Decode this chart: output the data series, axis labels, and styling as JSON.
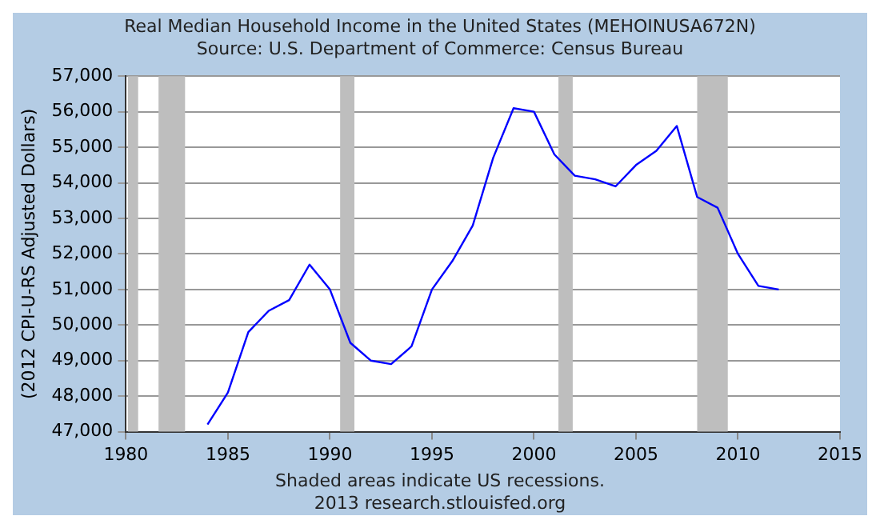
{
  "chart_data": {
    "type": "line",
    "title": "Real Median Household Income in the United States (MEHOINUSA672N)",
    "subtitle": "Source: U.S. Department of Commerce: Census Bureau",
    "ylabel": "(2012 CPI-U-RS Adjusted Dollars)",
    "annotations": [
      "Shaded areas indicate US recessions.",
      "2013 research.stlouisfed.org"
    ],
    "x": [
      1984,
      1985,
      1986,
      1987,
      1988,
      1989,
      1990,
      1991,
      1992,
      1993,
      1994,
      1995,
      1996,
      1997,
      1998,
      1999,
      2000,
      2001,
      2002,
      2003,
      2004,
      2005,
      2006,
      2007,
      2008,
      2009,
      2010,
      2011,
      2012
    ],
    "series": [
      {
        "color": "#0000ff",
        "values": [
          47200,
          48100,
          49800,
          50400,
          50700,
          51700,
          51000,
          49500,
          49000,
          48900,
          49400,
          51000,
          51800,
          52800,
          54700,
          56100,
          56000,
          54800,
          54200,
          54100,
          53900,
          54500,
          54900,
          55600,
          53600,
          53300,
          52000,
          51100,
          51000
        ]
      }
    ],
    "xlim": [
      1980,
      2015
    ],
    "xticks": [
      1980,
      1985,
      1990,
      1995,
      2000,
      2005,
      2010,
      2015
    ],
    "ylim": [
      47000,
      57000
    ],
    "yticks": [
      {
        "value": 47000,
        "label": "47,000"
      },
      {
        "value": 48000,
        "label": "48,000"
      },
      {
        "value": 49000,
        "label": "49,000"
      },
      {
        "value": 50000,
        "label": "50,000"
      },
      {
        "value": 51000,
        "label": "51,000"
      },
      {
        "value": 52000,
        "label": "52,000"
      },
      {
        "value": 53000,
        "label": "53,000"
      },
      {
        "value": 54000,
        "label": "54,000"
      },
      {
        "value": 55000,
        "label": "55,000"
      },
      {
        "value": 56000,
        "label": "56,000"
      },
      {
        "value": 57000,
        "label": "57,000"
      }
    ],
    "bands": [
      {
        "axis": "x",
        "from": 1980.1,
        "to": 1980.6,
        "color": "#bebebe"
      },
      {
        "axis": "x",
        "from": 1981.6,
        "to": 1982.9,
        "color": "#bebebe"
      },
      {
        "axis": "x",
        "from": 1990.5,
        "to": 1991.2,
        "color": "#bebebe"
      },
      {
        "axis": "x",
        "from": 2001.2,
        "to": 2001.9,
        "color": "#bebebe"
      },
      {
        "axis": "x",
        "from": 2008,
        "to": 2009.5,
        "color": "#bebebe"
      }
    ],
    "grid": "y",
    "legend": false,
    "marker": "none",
    "line_style": "solid"
  }
}
